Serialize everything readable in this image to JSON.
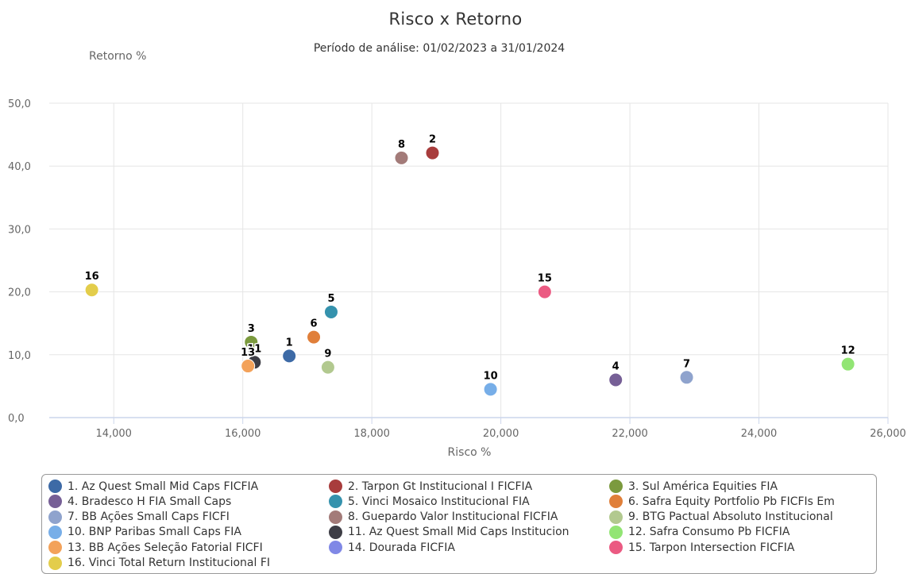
{
  "chart_data": {
    "type": "scatter",
    "title": "Risco x Retorno",
    "subtitle": "Período de análise: 01/02/2023 a 31/01/2024",
    "xlabel": "Risco %",
    "ylabel": "Retorno %",
    "xlim": [
      13000,
      26000
    ],
    "ylim": [
      0,
      50
    ],
    "xticks": [
      "14,000",
      "16,000",
      "18,000",
      "20,000",
      "22,000",
      "24,000",
      "26,000"
    ],
    "yticks": [
      "0,0",
      "10,0",
      "20,0",
      "30,0",
      "40,0",
      "50,0"
    ],
    "grid": true,
    "legend_position": "bottom",
    "series": [
      {
        "id": "1",
        "name": "1. Az Quest Small Mid Caps FICFIA",
        "color": "#3d6aa6",
        "x": 16720,
        "y": 9.8
      },
      {
        "id": "2",
        "name": "2. Tarpon Gt Institucional I FICFIA",
        "color": "#a83c3c",
        "x": 18940,
        "y": 42.1
      },
      {
        "id": "3",
        "name": "3. Sul América Equities FIA",
        "color": "#7b9a3e",
        "x": 16130,
        "y": 12.0
      },
      {
        "id": "4",
        "name": "4. Bradesco H FIA Small Caps",
        "color": "#765f96",
        "x": 21780,
        "y": 6.0
      },
      {
        "id": "5",
        "name": "5. Vinci Mosaico Institucional FIA",
        "color": "#3592ad",
        "x": 17370,
        "y": 16.8
      },
      {
        "id": "6",
        "name": "6. Safra Equity Portfolio Pb FICFIs Em",
        "color": "#e07f3a",
        "x": 17100,
        "y": 12.8
      },
      {
        "id": "7",
        "name": "7. BB Ações Small Caps FICFI",
        "color": "#8fa3cd",
        "x": 22880,
        "y": 6.4
      },
      {
        "id": "8",
        "name": "8. Guepardo Valor Institucional FICFIA",
        "color": "#a37b79",
        "x": 18460,
        "y": 41.3
      },
      {
        "id": "9",
        "name": "9. BTG Pactual Absoluto Institucional",
        "color": "#b2c98f",
        "x": 17320,
        "y": 8.0
      },
      {
        "id": "10",
        "name": "10. BNP Paribas Small Caps FIA",
        "color": "#77aee8",
        "x": 19840,
        "y": 4.5
      },
      {
        "id": "11",
        "name": "11. Az Quest Small Mid Caps Institucion",
        "color": "#3d3d45",
        "x": 16180,
        "y": 8.8
      },
      {
        "id": "12",
        "name": "12. Safra Consumo Pb FICFIA",
        "color": "#92e574",
        "x": 25380,
        "y": 8.5
      },
      {
        "id": "13",
        "name": "13. BB Ações Seleção Fatorial FICFI",
        "color": "#f3a25a",
        "x": 16080,
        "y": 8.2
      },
      {
        "id": "14",
        "name": "14. Dourada FICFIA",
        "color": "#8088e6",
        "x": null,
        "y": null
      },
      {
        "id": "15",
        "name": "15. Tarpon Intersection FICFIA",
        "color": "#eb5a82",
        "x": 20680,
        "y": 20.0
      },
      {
        "id": "16",
        "name": "16. Vinci Total Return Institucional FI",
        "color": "#e3cd4b",
        "x": 13660,
        "y": 20.3
      }
    ]
  }
}
